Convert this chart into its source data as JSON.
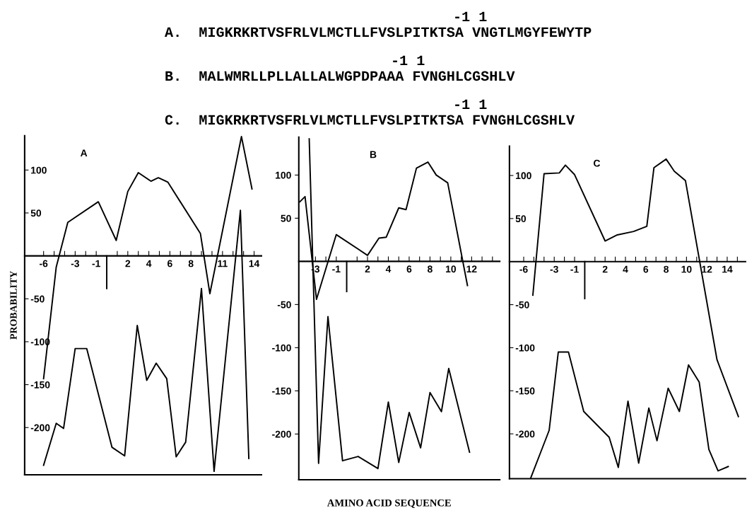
{
  "chart_data": [
    {
      "type": "line",
      "title": "A",
      "ylabel": "PROBABILITY",
      "annotations": [
        "-1 1",
        "A.  MIGKRKRTVSFRLVLMCTLLFVSLPITKTSA VNGTLMGYFEWYTP",
        "-1 1",
        "B.  MALWMRLLPLLALLALWGPDPAAA FVNGHLCGSHLV",
        "-1 1",
        "C.  MIGKRKRTVSFRLVLMCTLLFVSLPITKTSA FVNGHLCGSHLV"
      ],
      "xlim": [
        -7.8,
        14.7
      ],
      "ylim": [
        -255,
        140
      ],
      "xticks": [
        -6,
        {
          "value": -5,
          "label": null
        },
        {
          "value": -4,
          "label": null
        },
        -3,
        {
          "value": -2,
          "label": null
        },
        -1,
        {
          "value": 1,
          "label": null
        },
        2,
        {
          "value": 3,
          "label": null
        },
        4,
        {
          "value": 5,
          "label": null
        },
        6,
        {
          "value": 7,
          "label": null
        },
        8,
        {
          "value": 9,
          "label": null
        },
        {
          "value": 10,
          "label": null
        },
        11,
        {
          "value": 12,
          "label": null
        },
        {
          "value": 13,
          "label": null
        },
        14
      ],
      "yticks": [
        -200,
        -150,
        -100,
        -50,
        50,
        100
      ],
      "series": [
        {
          "color": "#000000",
          "x": [
            -6,
            -4.8,
            -3.7,
            -0.8,
            0.9,
            2,
            3,
            4.2,
            4.9,
            5.8,
            8.9,
            9.8,
            12.8,
            13.8
          ],
          "values": [
            -143,
            -13,
            39,
            63,
            18,
            75,
            97,
            87,
            91,
            86,
            26,
            -44,
            139,
            78
          ]
        },
        {
          "color": "#000000",
          "x": [
            -6,
            -4.8,
            -4.1,
            -3,
            -1.9,
            0.5,
            1.7,
            2.9,
            3.8,
            4.7,
            5.7,
            6.6,
            7.5,
            9,
            10.2,
            12.7,
            13.5
          ],
          "values": [
            -244,
            -195,
            -201,
            -108,
            -108,
            -223,
            -233,
            -81,
            -145,
            -125,
            -143,
            -234,
            -217,
            -38,
            -251,
            53,
            -236
          ]
        },
        {
          "color": "#000000",
          "x": [
            0,
            0
          ],
          "values": [
            0,
            -38
          ]
        }
      ]
    },
    {
      "type": "line",
      "title": "B",
      "xlabel": "AMINO ACID SEQUENCE",
      "xlim": [
        -4.6,
        14.7
      ],
      "ylim": [
        -253,
        144
      ],
      "xticks": [
        -3,
        {
          "value": -2,
          "label": null
        },
        -1,
        {
          "value": 1,
          "label": null
        },
        2,
        {
          "value": 3,
          "label": null
        },
        4,
        {
          "value": 5,
          "label": null
        },
        6,
        {
          "value": 7,
          "label": null
        },
        8,
        {
          "value": 9,
          "label": null
        },
        10,
        {
          "value": 11,
          "label": null
        },
        12,
        {
          "value": 13,
          "label": null
        },
        {
          "value": 14,
          "label": null
        }
      ],
      "yticks": [
        -200,
        -150,
        -100,
        -50,
        50,
        100
      ],
      "series": [
        {
          "color": "#000000",
          "x": [
            -4.5,
            -4,
            -2.9,
            -1,
            2,
            3.1,
            3.8,
            5,
            5.7,
            6.7,
            7.8,
            8.6,
            9.7,
            11.6
          ],
          "values": [
            69,
            75,
            -44,
            31,
            7,
            27,
            28,
            62,
            60,
            108,
            115,
            100,
            91,
            -28
          ]
        },
        {
          "color": "#000000",
          "x": [
            -3.6,
            -2.7,
            -1.8,
            -0.4,
            1.1,
            3,
            4,
            5,
            6,
            7.1,
            8,
            9.1,
            9.8,
            11.8
          ],
          "values": [
            142,
            -234,
            -64,
            -231,
            -226,
            -240,
            -163,
            -233,
            -175,
            -216,
            -152,
            -174,
            -124,
            -221
          ]
        },
        {
          "color": "#000000",
          "x": [
            0,
            0
          ],
          "values": [
            0,
            -35
          ]
        }
      ]
    },
    {
      "type": "line",
      "title": "C",
      "xlim": [
        -7.4,
        15.8
      ],
      "ylim": [
        -252,
        134
      ],
      "xticks": [
        -6,
        {
          "value": -5,
          "label": null
        },
        {
          "value": -4,
          "label": null
        },
        -3,
        {
          "value": -2,
          "label": null
        },
        -1,
        {
          "value": 1,
          "label": null
        },
        2,
        {
          "value": 3,
          "label": null
        },
        4,
        {
          "value": 5,
          "label": null
        },
        6,
        {
          "value": 7,
          "label": null
        },
        8,
        {
          "value": 9,
          "label": null
        },
        10,
        {
          "value": 11,
          "label": null
        },
        12,
        {
          "value": 13,
          "label": null
        },
        14,
        {
          "value": 15,
          "label": null
        }
      ],
      "yticks": [
        -200,
        -150,
        -100,
        -50,
        50,
        100
      ],
      "series": [
        {
          "color": "#000000",
          "x": [
            -5.1,
            -4,
            -2.5,
            -1.9,
            -1,
            2,
            3.2,
            4.8,
            6.1,
            6.8,
            8,
            8.8,
            9.9,
            13,
            15.1
          ],
          "values": [
            -39,
            102,
            103,
            112,
            101,
            24,
            31,
            35,
            41,
            109,
            119,
            105,
            94,
            -114,
            -180
          ]
        },
        {
          "color": "#000000",
          "x": [
            -5.3,
            -3.5,
            -2.6,
            -1.6,
            -0.1,
            2.4,
            3.3,
            4.25,
            5.3,
            6.3,
            7.1,
            8.2,
            9.3,
            10.2,
            11.25,
            12.2,
            13.1,
            14.1
          ],
          "values": [
            -251,
            -196,
            -105,
            -105,
            -174,
            -204,
            -239,
            -162,
            -234,
            -170,
            -208,
            -147,
            -174,
            -120,
            -140,
            -218,
            -243,
            -238
          ]
        },
        {
          "color": "#000000",
          "x": [
            0,
            0
          ],
          "values": [
            0,
            -43
          ]
        }
      ]
    }
  ]
}
